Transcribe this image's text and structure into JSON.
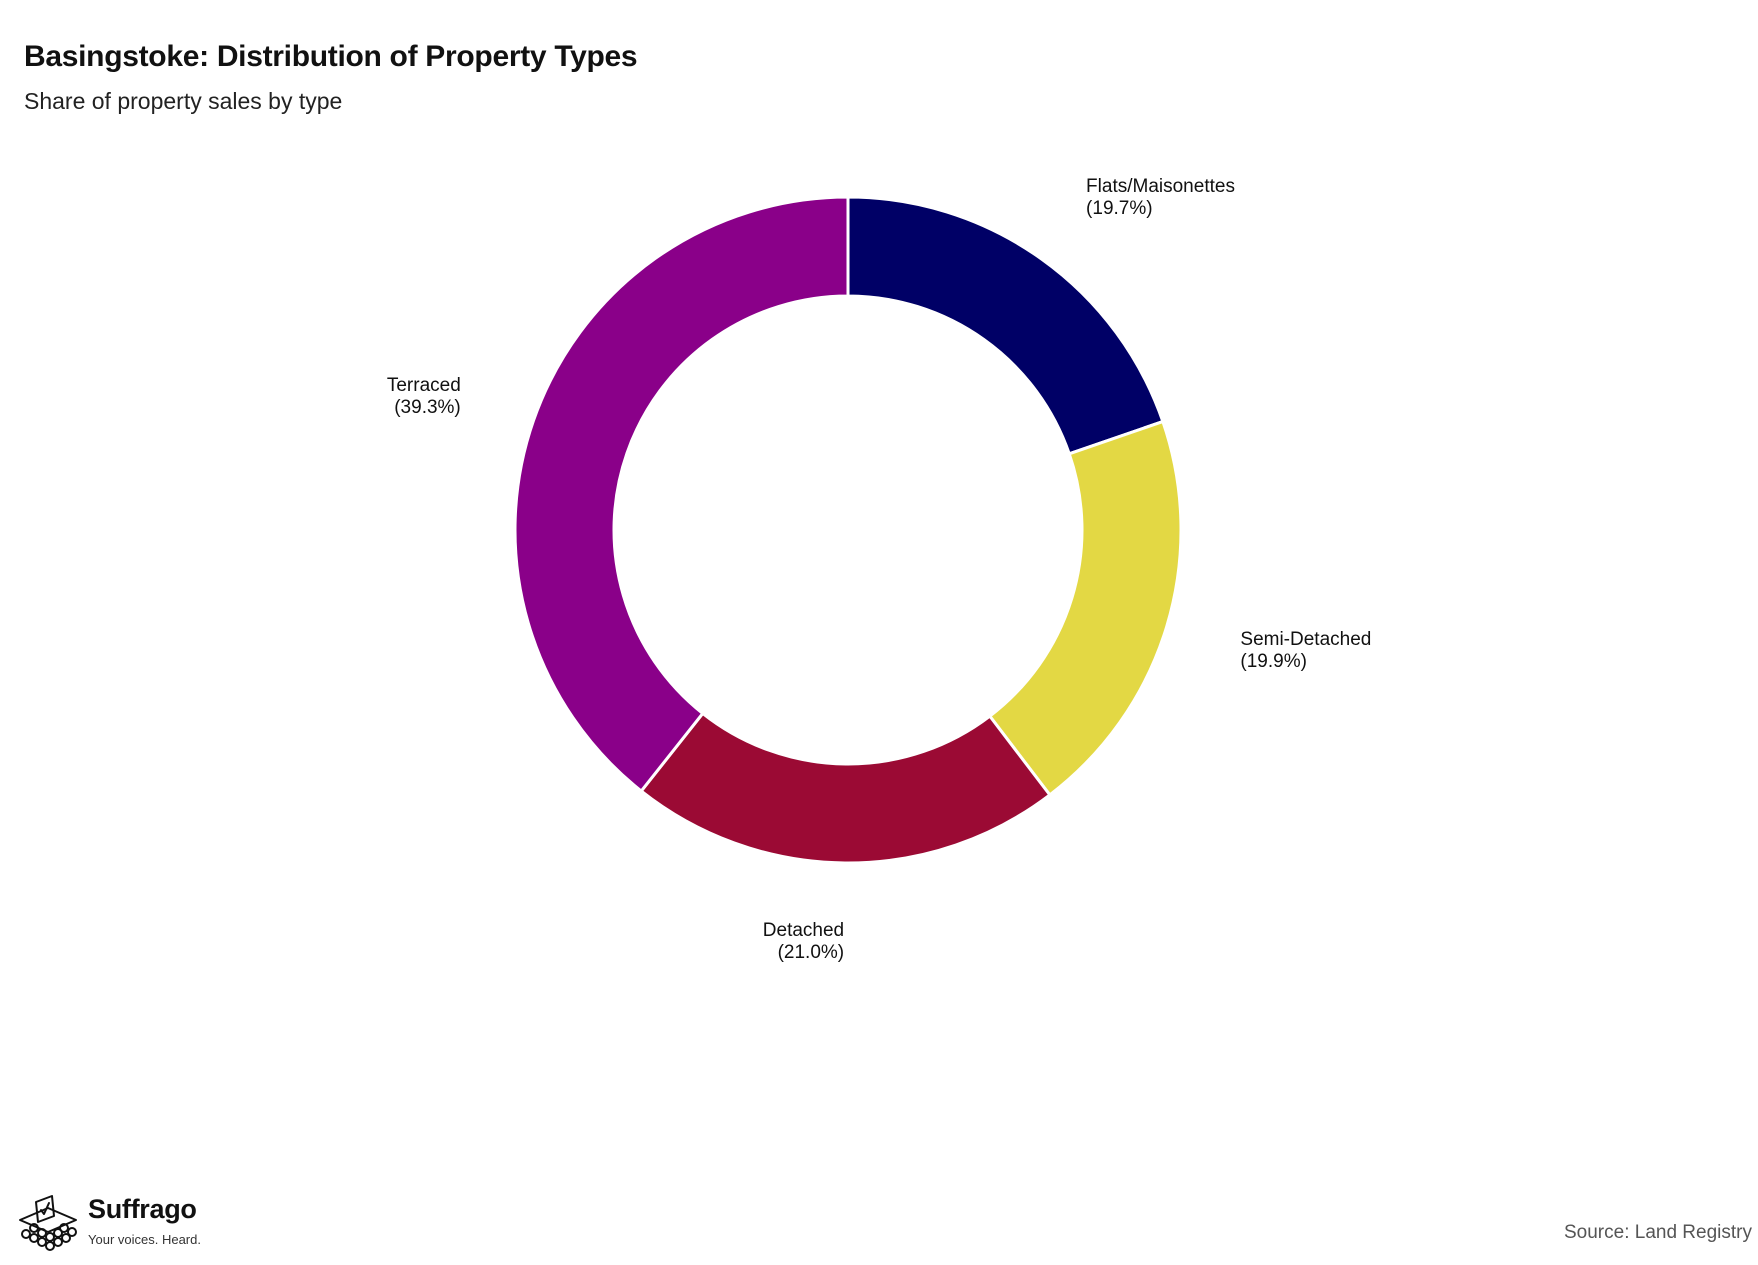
{
  "chart_data": {
    "type": "pie",
    "style": "donut",
    "title": "Basingstoke: Distribution of Property Types",
    "subtitle": "Share of property sales by type",
    "source": "Source: Land Registry",
    "start_angle": "top",
    "direction": "clockwise",
    "slices": [
      {
        "name": "Flats/Maisonettes",
        "value": 19.7,
        "value_label": "(19.7%)",
        "color": "#000066",
        "label_align": "start"
      },
      {
        "name": "Semi-Detached",
        "value": 19.9,
        "value_label": "(19.9%)",
        "color": "#E3D844",
        "label_align": "start"
      },
      {
        "name": "Detached",
        "value": 21.0,
        "value_label": "(21.0%)",
        "color": "#9B0A34",
        "label_align": "end"
      },
      {
        "name": "Terraced",
        "value": 39.3,
        "value_label": "(39.3%)",
        "color": "#8A0089",
        "label_align": "end"
      }
    ]
  },
  "brand": {
    "name": "Suffrago",
    "tagline": "Your voices. Heard.",
    "icon": "ballot-box-icon"
  }
}
